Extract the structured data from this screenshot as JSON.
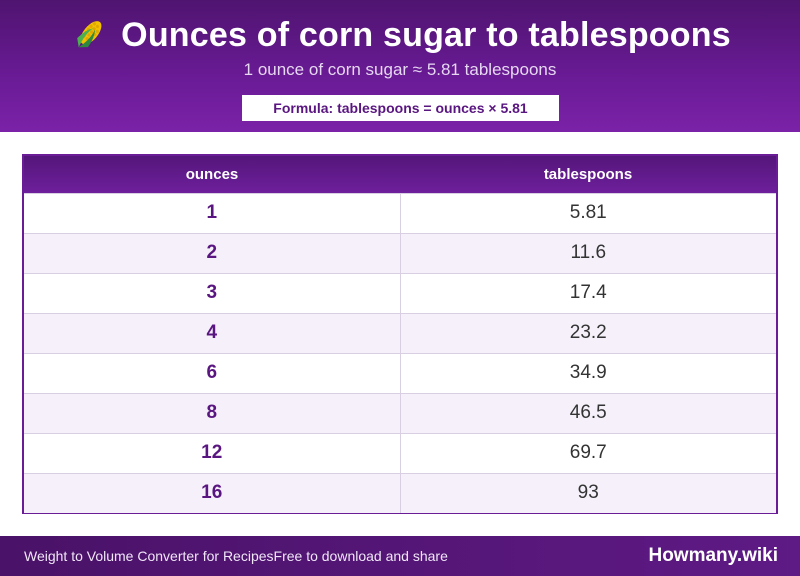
{
  "header": {
    "icon": "corn-icon",
    "title": "Ounces of corn sugar to tablespoons",
    "subtitle": "1 ounce of corn sugar ≈ 5.81 tablespoons",
    "formula": "Formula: tablespoons = ounces × 5.81"
  },
  "table": {
    "columns": [
      "ounces",
      "tablespoons"
    ],
    "rows": [
      [
        "1",
        "5.81"
      ],
      [
        "2",
        "11.6"
      ],
      [
        "3",
        "17.4"
      ],
      [
        "4",
        "23.2"
      ],
      [
        "6",
        "34.9"
      ],
      [
        "8",
        "46.5"
      ],
      [
        "12",
        "69.7"
      ],
      [
        "16",
        "93"
      ]
    ]
  },
  "footer": {
    "left_1": "Weight to Volume Converter for Recipes",
    "left_2": "Free to download and share",
    "brand": "Howmany.wiki"
  },
  "colors": {
    "header_purple": "#6a1b96",
    "accent_text": "#5a1680",
    "row_alt": "#f5f0fa"
  }
}
